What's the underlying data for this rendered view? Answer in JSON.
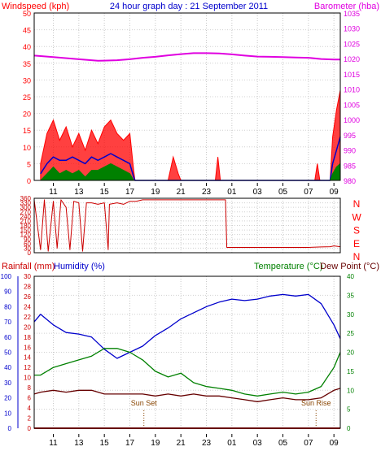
{
  "header": {
    "left": "Windspeed (kph)",
    "center": "24 hour graph day : 21 September 2011",
    "right": "Barometer (hba)"
  },
  "bottom_header": {
    "rainfall": "Rainfall (mm)",
    "humidity": "Humidity (%)",
    "temperature": "Temperature (°C)",
    "dew_point": "Dew Point (°C)"
  },
  "colors": {
    "wind_gust": "#ff0000",
    "wind_avg": "#0000cc",
    "wind_low": "#008000",
    "barometer": "#e000e0",
    "direction": "#cc0000",
    "humidity": "#0000cc",
    "temperature": "#008000",
    "dew_point": "#660000",
    "rainfall": "#cc0000",
    "sun": "#884400"
  },
  "chart_data": [
    {
      "type": "line",
      "panel": "wind",
      "x_ticks": [
        "11",
        "13",
        "15",
        "17",
        "19",
        "21",
        "23",
        "01",
        "03",
        "05",
        "07",
        "09"
      ],
      "left_axis": {
        "title": "Windspeed (kph)",
        "ticks": [
          0,
          5,
          10,
          15,
          20,
          25,
          30,
          35,
          40,
          45,
          50
        ],
        "ylim": [
          0,
          50
        ]
      },
      "right_axis": {
        "title": "Barometer (hba)",
        "ticks": [
          980,
          985,
          990,
          995,
          1000,
          1005,
          1010,
          1015,
          1020,
          1025,
          1030,
          1035
        ],
        "ylim": [
          980,
          1035
        ]
      },
      "series": [
        {
          "key": "gust",
          "color": "#ff0000",
          "values": [
            [
              10,
              5
            ],
            [
              10.5,
              14
            ],
            [
              11,
              18
            ],
            [
              11.5,
              12
            ],
            [
              12,
              16
            ],
            [
              12.5,
              10
            ],
            [
              13,
              14
            ],
            [
              13.5,
              9
            ],
            [
              14,
              15
            ],
            [
              14.5,
              11
            ],
            [
              15,
              16
            ],
            [
              15.5,
              18
            ],
            [
              16,
              14
            ],
            [
              16.5,
              12
            ],
            [
              17,
              14
            ],
            [
              17.3,
              3
            ],
            [
              17.4,
              0
            ],
            [
              20,
              0
            ],
            [
              20.4,
              7
            ],
            [
              20.8,
              2
            ],
            [
              21,
              0
            ],
            [
              23.7,
              0
            ],
            [
              23.9,
              7
            ],
            [
              24.1,
              0
            ],
            [
              31.5,
              0
            ],
            [
              31.7,
              5
            ],
            [
              31.9,
              0
            ],
            [
              32.7,
              0
            ],
            [
              32.9,
              13
            ],
            [
              33.2,
              21
            ],
            [
              33.5,
              27
            ]
          ]
        },
        {
          "key": "average",
          "color": "#0000cc",
          "values": [
            [
              10,
              2
            ],
            [
              10.5,
              5
            ],
            [
              11,
              7
            ],
            [
              11.5,
              6
            ],
            [
              12,
              6
            ],
            [
              12.5,
              7
            ],
            [
              13,
              6
            ],
            [
              13.5,
              5
            ],
            [
              14,
              7
            ],
            [
              14.5,
              6
            ],
            [
              15,
              7
            ],
            [
              15.5,
              8
            ],
            [
              16,
              7
            ],
            [
              16.5,
              6
            ],
            [
              17,
              5
            ],
            [
              17.3,
              1
            ],
            [
              17.4,
              0
            ],
            [
              32.7,
              0
            ],
            [
              32.9,
              5
            ],
            [
              33.2,
              9
            ],
            [
              33.5,
              13
            ]
          ]
        },
        {
          "key": "low",
          "color": "#008000",
          "values": [
            [
              10,
              0
            ],
            [
              10.5,
              2
            ],
            [
              11,
              4
            ],
            [
              11.5,
              2
            ],
            [
              12,
              3
            ],
            [
              12.5,
              2
            ],
            [
              13,
              3
            ],
            [
              13.5,
              1
            ],
            [
              14,
              3
            ],
            [
              14.5,
              3
            ],
            [
              15,
              4
            ],
            [
              15.5,
              5
            ],
            [
              16,
              4
            ],
            [
              16.5,
              3
            ],
            [
              17,
              2
            ],
            [
              17.3,
              0
            ],
            [
              32.7,
              0
            ],
            [
              32.9,
              2
            ],
            [
              33.2,
              4
            ],
            [
              33.5,
              5
            ]
          ]
        },
        {
          "key": "barometer",
          "axis": "right",
          "color": "#e000e0",
          "values": [
            [
              9.5,
              1021
            ],
            [
              11,
              1020.5
            ],
            [
              13,
              1019.8
            ],
            [
              14.5,
              1019.3
            ],
            [
              16,
              1019.5
            ],
            [
              17,
              1019.8
            ],
            [
              18,
              1020.3
            ],
            [
              19,
              1020.6
            ],
            [
              20,
              1021.1
            ],
            [
              21,
              1021.5
            ],
            [
              22,
              1021.8
            ],
            [
              23,
              1021.8
            ],
            [
              24,
              1021.7
            ],
            [
              25,
              1021.4
            ],
            [
              26,
              1021
            ],
            [
              27,
              1020.7
            ],
            [
              28,
              1020.6
            ],
            [
              29,
              1020.5
            ],
            [
              30,
              1020.4
            ],
            [
              31,
              1020.3
            ],
            [
              32,
              1019.9
            ],
            [
              33,
              1019.7
            ],
            [
              33.5,
              1019.7
            ]
          ]
        }
      ]
    },
    {
      "type": "line",
      "panel": "wind_direction",
      "x_ticks": [],
      "left_axis": {
        "ticks": [
          0,
          30,
          60,
          90,
          120,
          150,
          180,
          210,
          240,
          270,
          300,
          330,
          360
        ],
        "ylim": [
          0,
          360
        ]
      },
      "right_axis": {
        "ticks": [
          "N",
          "W",
          "S",
          "E",
          "N"
        ]
      },
      "series": [
        {
          "key": "direction",
          "color": "#cc0000",
          "values": [
            [
              9.5,
              350
            ],
            [
              10,
              20
            ],
            [
              10.3,
              350
            ],
            [
              10.6,
              10
            ],
            [
              11,
              340
            ],
            [
              11.3,
              30
            ],
            [
              11.6,
              350
            ],
            [
              12,
              300
            ],
            [
              12.3,
              20
            ],
            [
              12.6,
              340
            ],
            [
              13,
              330
            ],
            [
              13.3,
              10
            ],
            [
              13.6,
              330
            ],
            [
              14,
              330
            ],
            [
              14.5,
              320
            ],
            [
              15,
              330
            ],
            [
              15.3,
              20
            ],
            [
              15.4,
              320
            ],
            [
              16,
              330
            ],
            [
              16.5,
              320
            ],
            [
              17,
              340
            ],
            [
              17.5,
              340
            ],
            [
              18,
              350
            ],
            [
              19,
              350
            ],
            [
              20,
              350
            ],
            [
              21,
              350
            ],
            [
              22,
              350
            ],
            [
              23,
              350
            ],
            [
              24.5,
              350
            ],
            [
              24.6,
              35
            ],
            [
              26,
              35
            ],
            [
              28,
              35
            ],
            [
              30,
              35
            ],
            [
              31,
              35
            ],
            [
              32,
              38
            ],
            [
              32.7,
              40
            ],
            [
              33,
              45
            ],
            [
              33.5,
              40
            ]
          ]
        }
      ]
    },
    {
      "type": "line",
      "panel": "temperature_humidity",
      "x_ticks": [
        "11",
        "13",
        "15",
        "17",
        "19",
        "21",
        "23",
        "01",
        "03",
        "05",
        "07",
        "09"
      ],
      "axes": {
        "humidity": {
          "title": "Humidity (%)",
          "ticks": [
            0,
            10,
            20,
            30,
            40,
            50,
            60,
            70,
            80,
            90,
            100
          ],
          "ylim": [
            0,
            100
          ]
        },
        "rainfall": {
          "title": "Rainfall (mm)",
          "ticks": [
            0,
            2,
            4,
            6,
            8,
            10,
            12,
            14,
            16,
            18,
            20,
            22,
            24,
            26,
            28,
            30
          ],
          "ylim": [
            0,
            30
          ]
        },
        "temperature": {
          "title": "Temperature (°C)",
          "ticks": [
            0,
            5,
            10,
            15,
            20,
            25,
            30,
            35,
            40
          ],
          "ylim": [
            0,
            40
          ]
        }
      },
      "annotations": [
        {
          "label": "Sun Set",
          "x": 18.1
        },
        {
          "label": "Sun Rise",
          "x": 31.6
        }
      ],
      "series": [
        {
          "key": "humidity",
          "axis": "humidity",
          "color": "#0000cc",
          "values": [
            [
              9.5,
              70
            ],
            [
              10,
              75
            ],
            [
              11,
              68
            ],
            [
              12,
              63
            ],
            [
              13,
              62
            ],
            [
              14,
              60
            ],
            [
              15,
              52
            ],
            [
              16,
              46
            ],
            [
              17,
              50
            ],
            [
              18,
              54
            ],
            [
              19,
              61
            ],
            [
              20,
              66
            ],
            [
              21,
              72
            ],
            [
              22,
              76
            ],
            [
              23,
              80
            ],
            [
              24,
              83
            ],
            [
              25,
              85
            ],
            [
              26,
              84
            ],
            [
              27,
              85
            ],
            [
              28,
              87
            ],
            [
              29,
              88
            ],
            [
              30,
              87
            ],
            [
              31,
              88
            ],
            [
              32,
              82
            ],
            [
              33,
              68
            ],
            [
              33.5,
              59
            ]
          ]
        },
        {
          "key": "temperature",
          "axis": "temperature",
          "color": "#008000",
          "values": [
            [
              9.5,
              14
            ],
            [
              10,
              14
            ],
            [
              11,
              16
            ],
            [
              12,
              17
            ],
            [
              13,
              18
            ],
            [
              14,
              19
            ],
            [
              15,
              21
            ],
            [
              16,
              21
            ],
            [
              17,
              20
            ],
            [
              18,
              18
            ],
            [
              19,
              15
            ],
            [
              20,
              13.5
            ],
            [
              21,
              14.5
            ],
            [
              22,
              12
            ],
            [
              23,
              11
            ],
            [
              24,
              10.5
            ],
            [
              25,
              10
            ],
            [
              26,
              9
            ],
            [
              27,
              8.5
            ],
            [
              28,
              9
            ],
            [
              29,
              9.5
            ],
            [
              30,
              9
            ],
            [
              31,
              9.5
            ],
            [
              32,
              11
            ],
            [
              33,
              16
            ],
            [
              33.5,
              20
            ]
          ]
        },
        {
          "key": "dew_point",
          "axis": "temperature",
          "color": "#660000",
          "values": [
            [
              9.5,
              9
            ],
            [
              10,
              9.5
            ],
            [
              11,
              10
            ],
            [
              12,
              9.5
            ],
            [
              13,
              10
            ],
            [
              14,
              10
            ],
            [
              15,
              9
            ],
            [
              16,
              9
            ],
            [
              17,
              9
            ],
            [
              18,
              9
            ],
            [
              19,
              8.5
            ],
            [
              20,
              9
            ],
            [
              21,
              8.5
            ],
            [
              22,
              9
            ],
            [
              23,
              8.5
            ],
            [
              24,
              8.5
            ],
            [
              25,
              8
            ],
            [
              26,
              7.5
            ],
            [
              27,
              7
            ],
            [
              28,
              7.5
            ],
            [
              29,
              8
            ],
            [
              30,
              7.5
            ],
            [
              31,
              7.5
            ],
            [
              32,
              8
            ],
            [
              33,
              10
            ],
            [
              33.5,
              10.5
            ]
          ]
        },
        {
          "key": "rainfall",
          "axis": "rainfall",
          "color": "#cc0000",
          "values": [
            [
              9.5,
              0
            ],
            [
              33.5,
              0
            ]
          ]
        }
      ]
    }
  ]
}
